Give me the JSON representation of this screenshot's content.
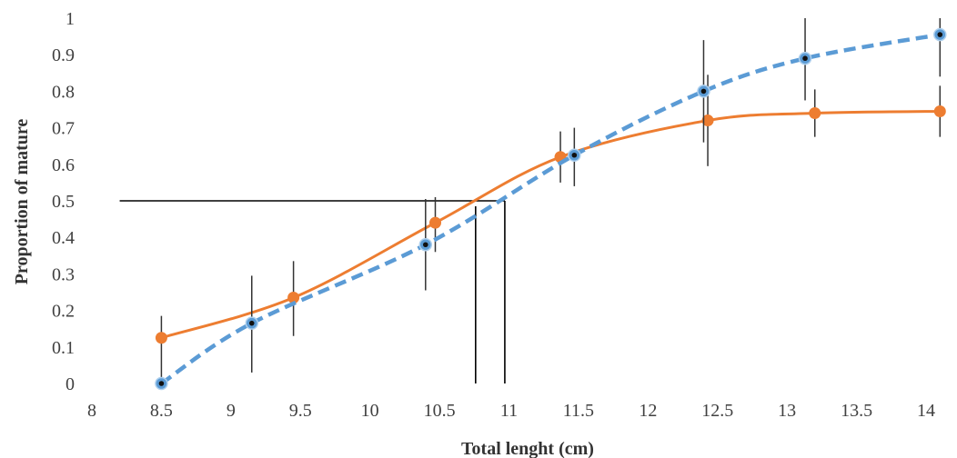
{
  "chart_data": {
    "type": "line",
    "xlabel": "Total lenght (cm)",
    "ylabel": "Proportion of mature",
    "xlim": [
      8,
      14.2
    ],
    "ylim": [
      0,
      1
    ],
    "x_ticks": [
      "8",
      "8.5",
      "9",
      "9.5",
      "10",
      "10.5",
      "11",
      "11.5",
      "12",
      "12.5",
      "13",
      "13.5",
      "14"
    ],
    "y_ticks": [
      "0",
      "0.1",
      "0.2",
      "0.3",
      "0.4",
      "0.5",
      "0.6",
      "0.7",
      "0.8",
      "0.9",
      "1"
    ],
    "grid": false,
    "legend": "none",
    "series": [
      {
        "color": "#ed7d31",
        "style": "solid",
        "x": [
          8.5,
          9.45,
          10.47,
          11.37,
          12.43,
          13.2,
          14.1
        ],
        "y": [
          0.125,
          0.235,
          0.44,
          0.62,
          0.72,
          0.74,
          0.745
        ],
        "err_low": [
          0.125,
          0.105,
          0.08,
          0.07,
          0.125,
          0.065,
          0.07
        ],
        "err_high": [
          0.06,
          0.1,
          0.07,
          0.07,
          0.125,
          0.065,
          0.07
        ]
      },
      {
        "color": "#5b9bd5",
        "style": "dashed",
        "x": [
          8.5,
          9.15,
          10.4,
          11.47,
          12.4,
          13.13,
          14.1
        ],
        "y": [
          0.0,
          0.165,
          0.38,
          0.625,
          0.8,
          0.89,
          0.955
        ],
        "err_low": [
          0.0,
          0.135,
          0.125,
          0.085,
          0.14,
          0.115,
          0.115
        ],
        "err_high": [
          0.0,
          0.13,
          0.125,
          0.075,
          0.14,
          0.11,
          0.045
        ]
      }
    ],
    "reference_lines": [
      {
        "y": 0.5,
        "x_start": 8.2,
        "x_end": 10.97,
        "x_drop": 10.97
      },
      {
        "y": 0.485,
        "x_start": 10.76,
        "x_end": 10.76,
        "x_drop": 10.76
      }
    ]
  }
}
